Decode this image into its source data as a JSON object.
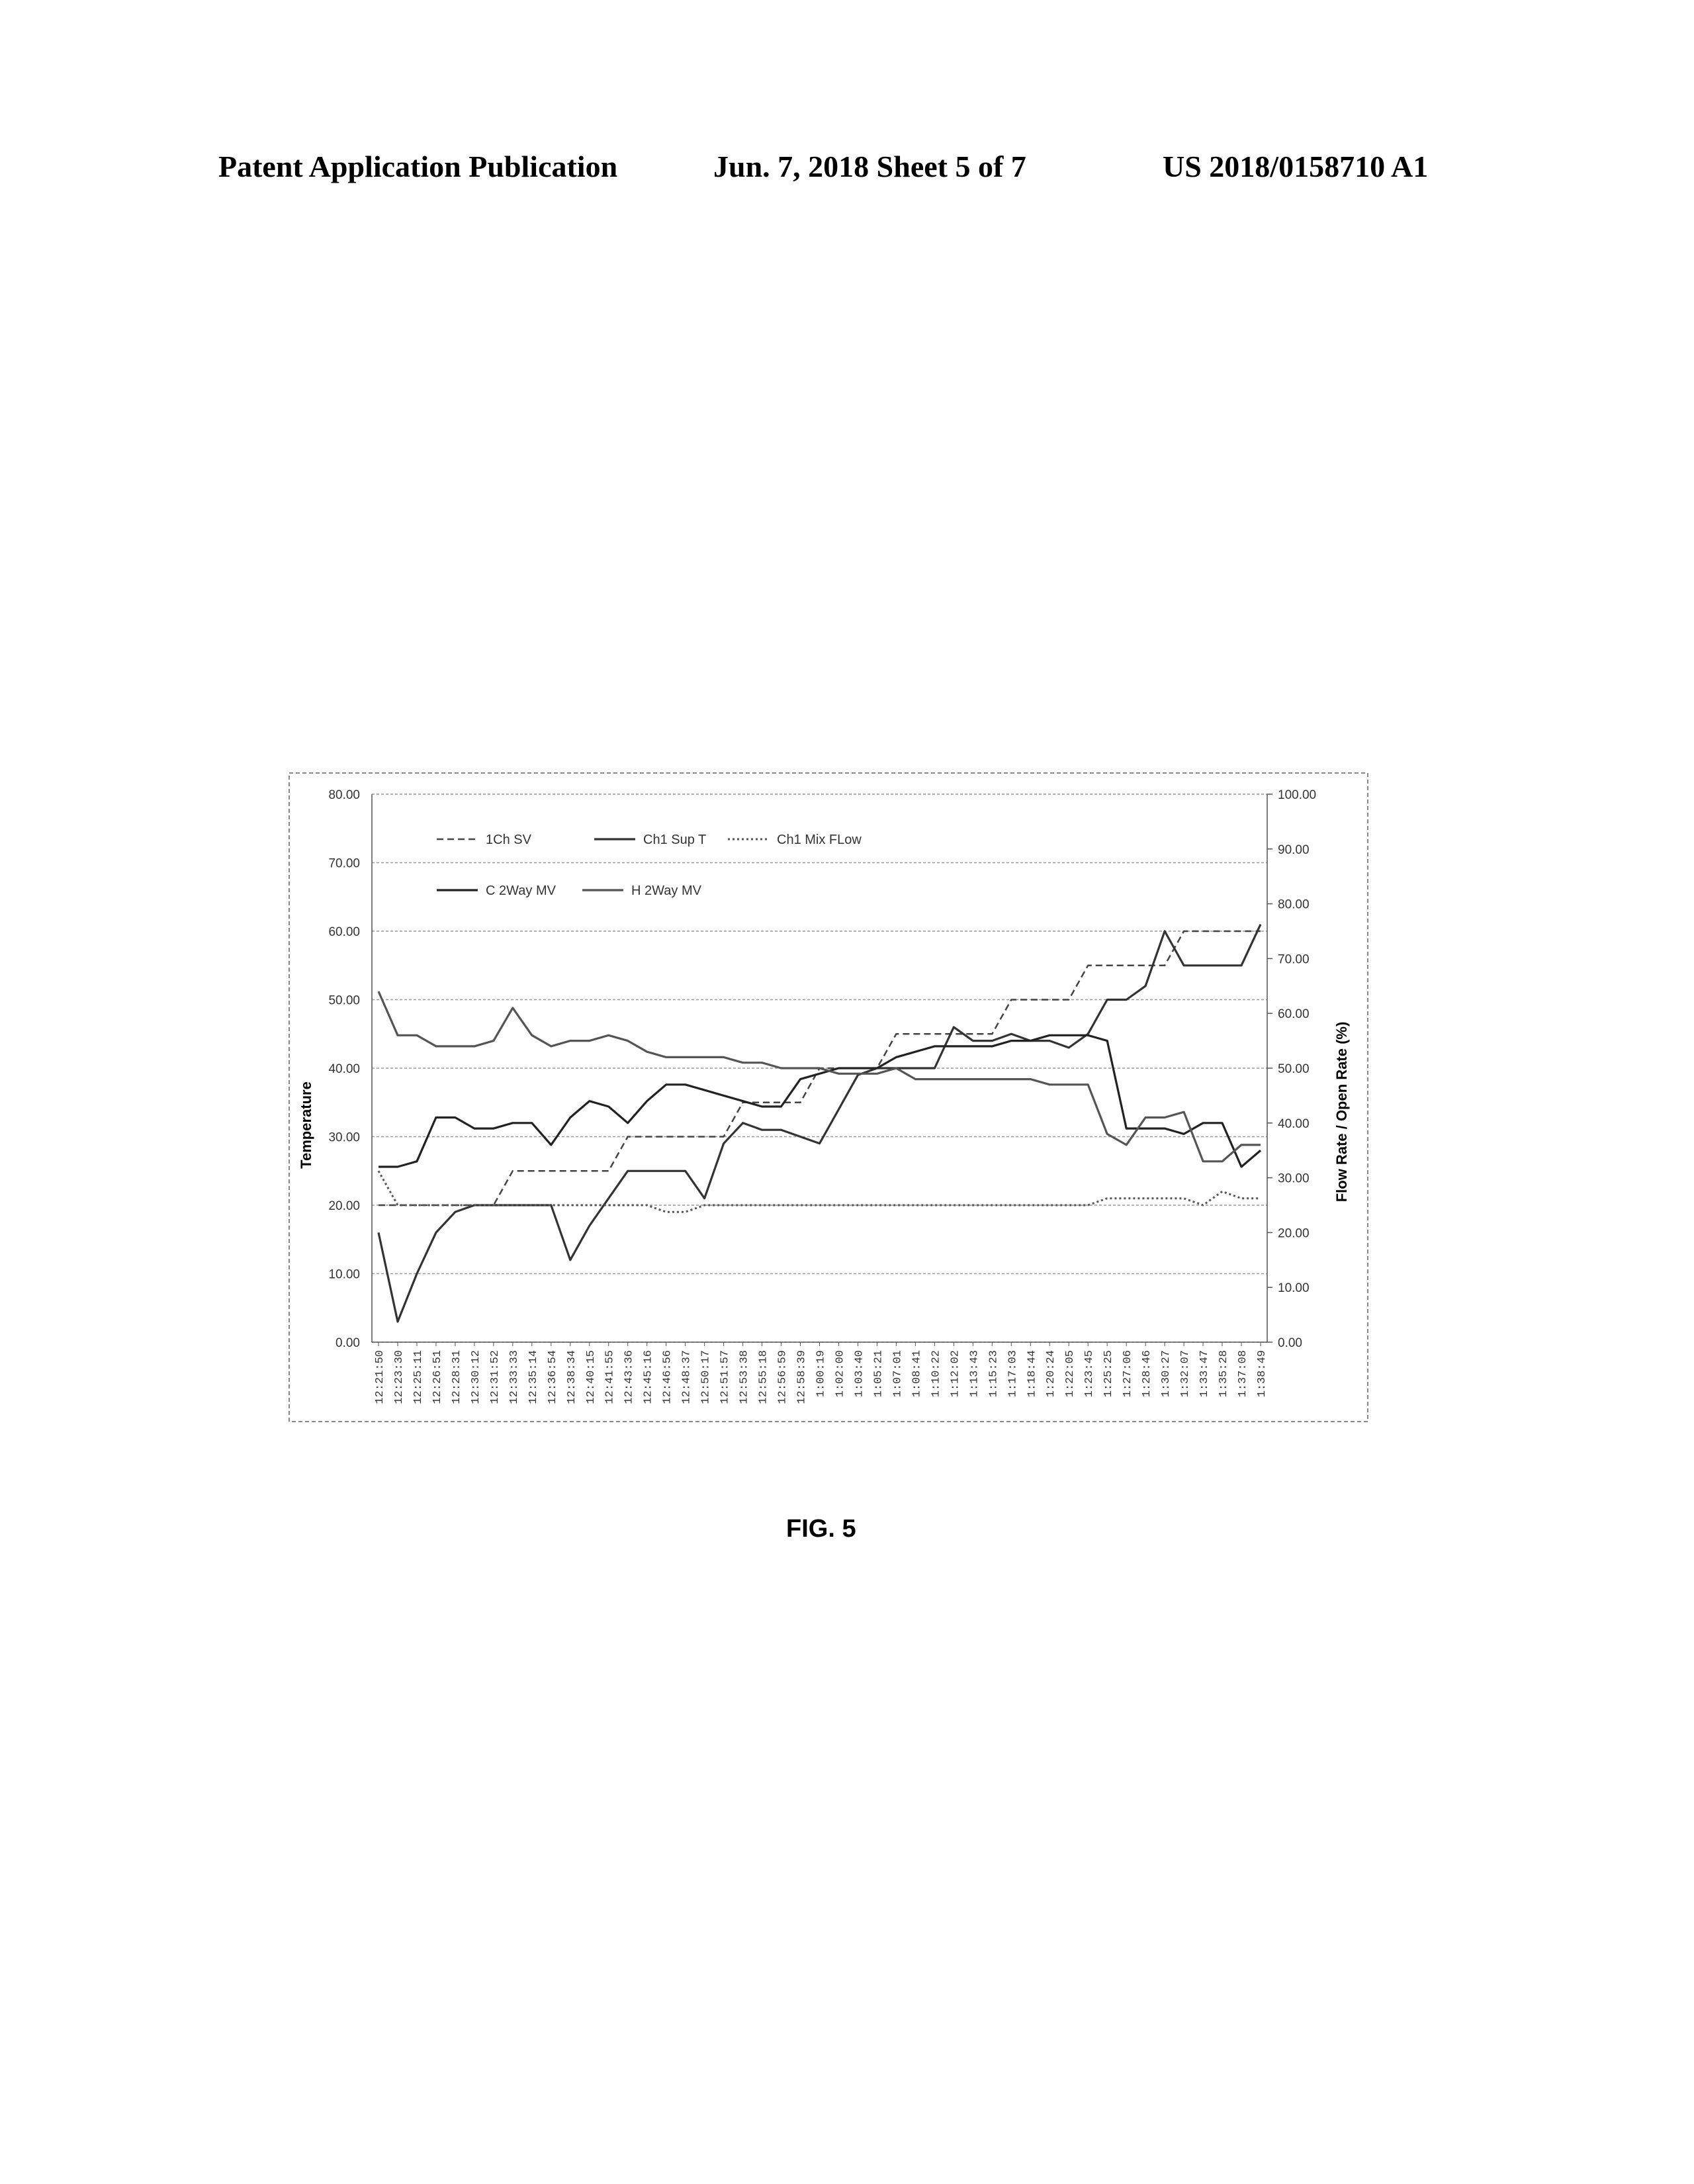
{
  "header": {
    "left": "Patent Application Publication",
    "middle": "Jun. 7, 2018   Sheet 5 of 7",
    "right": "US 2018/0158710 A1"
  },
  "figure_label": "FIG. 5",
  "chart_data": {
    "type": "line",
    "title": "",
    "xlabel": "",
    "ylabel": "Temperature",
    "ylabel_right": "Flow Rate / Open Rate (%)",
    "ylim": [
      0,
      80
    ],
    "ylim_right": [
      0,
      100
    ],
    "yticks": [
      "0.00",
      "10.00",
      "20.00",
      "30.00",
      "40.00",
      "50.00",
      "60.00",
      "70.00",
      "80.00"
    ],
    "yticks_right": [
      "0.00",
      "10.00",
      "20.00",
      "30.00",
      "40.00",
      "50.00",
      "60.00",
      "70.00",
      "80.00",
      "90.00",
      "100.00"
    ],
    "grid": true,
    "legend_position": "top-left",
    "x": [
      "12:21:50",
      "12:23:30",
      "12:25:11",
      "12:26:51",
      "12:28:31",
      "12:30:12",
      "12:31:52",
      "12:33:33",
      "12:35:14",
      "12:36:54",
      "12:38:34",
      "12:40:15",
      "12:41:55",
      "12:43:36",
      "12:45:16",
      "12:46:56",
      "12:48:37",
      "12:50:17",
      "12:51:57",
      "12:53:38",
      "12:55:18",
      "12:56:59",
      "12:58:39",
      "1:00:19",
      "1:02:00",
      "1:03:40",
      "1:05:21",
      "1:07:01",
      "1:08:41",
      "1:10:22",
      "1:12:02",
      "1:13:43",
      "1:15:23",
      "1:17:03",
      "1:18:44",
      "1:20:24",
      "1:22:05",
      "1:23:45",
      "1:25:25",
      "1:27:06",
      "1:28:46",
      "1:30:27",
      "1:32:07",
      "1:33:47",
      "1:35:28",
      "1:37:08",
      "1:38:49"
    ],
    "series": [
      {
        "name": "1Ch SV",
        "axis": "left",
        "style": "dash",
        "values": [
          20,
          20,
          20,
          20,
          20,
          20,
          20,
          25,
          25,
          25,
          25,
          25,
          25,
          30,
          30,
          30,
          30,
          30,
          30,
          35,
          35,
          35,
          35,
          40,
          40,
          40,
          40,
          45,
          45,
          45,
          45,
          45,
          45,
          50,
          50,
          50,
          50,
          55,
          55,
          55,
          55,
          55,
          60,
          60,
          60,
          60,
          60
        ]
      },
      {
        "name": "Ch1 Sup T",
        "axis": "left",
        "style": "solid",
        "values": [
          16,
          3,
          10,
          16,
          19,
          20,
          20,
          20,
          20,
          20,
          12,
          17,
          21,
          25,
          25,
          25,
          25,
          21,
          29,
          32,
          31,
          31,
          30,
          29,
          34,
          39,
          40,
          40,
          40,
          40,
          46,
          44,
          44,
          45,
          44,
          44,
          43,
          45,
          50,
          50,
          52,
          60,
          55,
          55,
          55,
          55,
          61
        ]
      },
      {
        "name": "Ch1 Mix FLow",
        "axis": "left",
        "style": "dot",
        "values": [
          25,
          20,
          20,
          20,
          20,
          20,
          20,
          20,
          20,
          20,
          20,
          20,
          20,
          20,
          20,
          19,
          19,
          20,
          20,
          20,
          20,
          20,
          20,
          20,
          20,
          20,
          20,
          20,
          20,
          20,
          20,
          20,
          20,
          20,
          20,
          20,
          20,
          20,
          21,
          21,
          21,
          21,
          21,
          20,
          22,
          21,
          21
        ]
      },
      {
        "name": "C 2Way MV",
        "axis": "right",
        "style": "solid",
        "values": [
          32,
          32,
          33,
          41,
          41,
          39,
          39,
          40,
          40,
          36,
          41,
          44,
          43,
          40,
          44,
          47,
          47,
          46,
          45,
          44,
          43,
          43,
          48,
          49,
          50,
          50,
          50,
          52,
          53,
          54,
          54,
          54,
          54,
          55,
          55,
          56,
          56,
          56,
          55,
          39,
          39,
          39,
          38,
          40,
          40,
          32,
          35
        ]
      },
      {
        "name": "H 2Way MV",
        "axis": "right",
        "style": "solid",
        "values": [
          64,
          56,
          56,
          54,
          54,
          54,
          55,
          61,
          56,
          54,
          55,
          55,
          56,
          55,
          53,
          52,
          52,
          52,
          52,
          51,
          51,
          50,
          50,
          50,
          49,
          49,
          49,
          50,
          48,
          48,
          48,
          48,
          48,
          48,
          48,
          47,
          47,
          47,
          38,
          36,
          41,
          41,
          42,
          33,
          33,
          36,
          36
        ]
      }
    ]
  }
}
